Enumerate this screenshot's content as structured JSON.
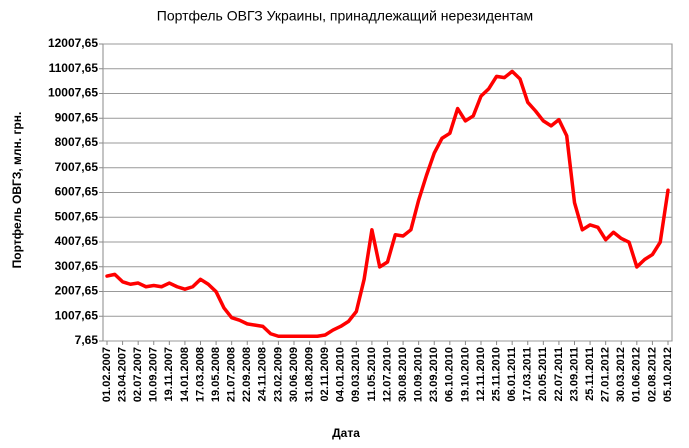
{
  "chart_data": {
    "type": "line",
    "title": "Портфель ОВГЗ Украины, принадлежащий нерезидентам",
    "y_label": "Портфель ОВГЗ, млн. грн.",
    "x_label": "Дата",
    "color": "#ff0000",
    "grid": true,
    "categories": [
      "01.02.2007",
      null,
      "23.04.2007",
      null,
      "02.07.2007",
      null,
      "10.09.2007",
      null,
      "19.11.2007",
      null,
      "14.01.2008",
      null,
      "17.03.2008",
      null,
      "19.05.2008",
      null,
      "21.07.2008",
      null,
      "22.09.2008",
      null,
      "24.11.2008",
      null,
      "23.02.2009",
      null,
      "30.06.2009",
      null,
      "31.08.2009",
      null,
      "02.11.2009",
      null,
      "04.01.2010",
      null,
      "09.03.2010",
      null,
      "11.05.2010",
      null,
      "12.07.2010",
      null,
      "30.08.2010",
      null,
      "10.09.2010",
      null,
      "23.09.2010",
      null,
      "06.10.2010",
      null,
      "19.10.2010",
      null,
      "12.11.2010",
      null,
      "25.11.2010",
      null,
      "06.01.2011",
      null,
      "17.03.2011",
      null,
      "20.05.2011",
      null,
      "22.07.2011",
      null,
      "23.09.2011",
      null,
      "25.11.2011",
      null,
      "27.01.2012",
      null,
      "30.03.2012",
      null,
      "01.06.2012",
      null,
      "02.08.2012",
      null,
      "05.10.2012"
    ],
    "values": [
      2630,
      2700,
      2400,
      2300,
      2350,
      2200,
      2250,
      2200,
      2350,
      2200,
      2100,
      2200,
      2500,
      2300,
      2000,
      1350,
      950,
      850,
      700,
      650,
      600,
      300,
      200,
      200,
      200,
      200,
      200,
      200,
      250,
      450,
      600,
      800,
      1200,
      2500,
      4500,
      3000,
      3200,
      4300,
      4250,
      4500,
      5700,
      6700,
      7600,
      8200,
      8400,
      9400,
      8900,
      9100,
      9900,
      10200,
      10700,
      10650,
      10900,
      10600,
      9650,
      9300,
      8900,
      8700,
      8950,
      8300,
      5600,
      4500,
      4700,
      4600,
      4100,
      4400,
      4150,
      4000,
      3000,
      3300,
      3500,
      4000,
      6100
    ],
    "ylim": [
      7.65,
      12007.65
    ],
    "yticks": [
      {
        "value": 7.65,
        "label": "7,65"
      },
      {
        "value": 1007.65,
        "label": "1007,65"
      },
      {
        "value": 2007.65,
        "label": "2007,65"
      },
      {
        "value": 3007.65,
        "label": "3007,65"
      },
      {
        "value": 4007.65,
        "label": "4007,65"
      },
      {
        "value": 5007.65,
        "label": "5007,65"
      },
      {
        "value": 6007.65,
        "label": "6007,65"
      },
      {
        "value": 7007.65,
        "label": "7007,65"
      },
      {
        "value": 8007.65,
        "label": "8007,65"
      },
      {
        "value": 9007.65,
        "label": "9007,65"
      },
      {
        "value": 10007.65,
        "label": "10007,65"
      },
      {
        "value": 11007.65,
        "label": "11007,65"
      },
      {
        "value": 12007.65,
        "label": "12007,65"
      }
    ]
  }
}
